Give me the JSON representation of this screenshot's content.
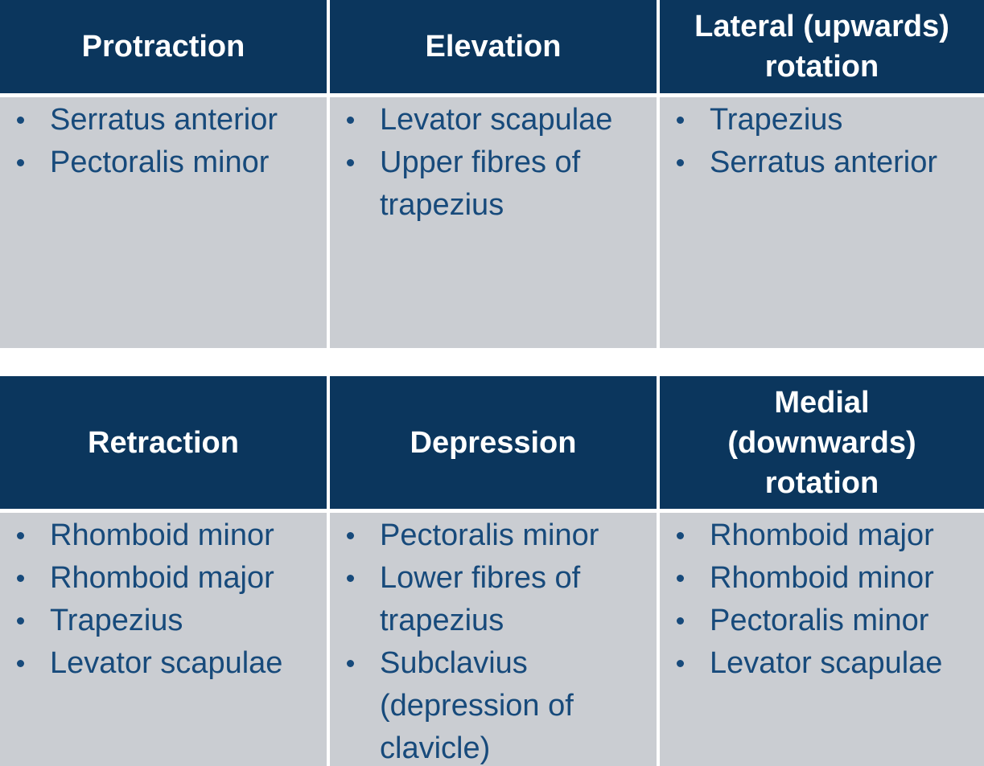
{
  "colors": {
    "header_bg": "#0B365D",
    "header_text": "#FFFFFF",
    "body_bg": "#CACDD2",
    "body_text": "#174A7B",
    "page_bg": "#FFFFFF"
  },
  "tables": [
    {
      "name": "scapular-movements-upper-table",
      "columns": [
        {
          "header": "Protraction",
          "items": [
            "Serratus anterior",
            "Pectoralis minor"
          ]
        },
        {
          "header": "Elevation",
          "items": [
            "Levator scapulae",
            "Upper fibres of\ntrapezius"
          ]
        },
        {
          "header": "Lateral (upwards)\nrotation",
          "items": [
            "Trapezius",
            "Serratus anterior"
          ]
        }
      ]
    },
    {
      "name": "scapular-movements-lower-table",
      "columns": [
        {
          "header": "Retraction",
          "items": [
            "Rhomboid minor",
            "Rhomboid major",
            "Trapezius",
            "Levator scapulae"
          ]
        },
        {
          "header": "Depression",
          "items": [
            "Pectoralis minor",
            "Lower fibres of\ntrapezius",
            "Subclavius\n(depression of\nclavicle)"
          ]
        },
        {
          "header": "Medial\n(downwards)\nrotation",
          "items": [
            "Rhomboid major",
            "Rhomboid minor",
            "Pectoralis minor",
            "Levator scapulae"
          ]
        }
      ]
    }
  ]
}
